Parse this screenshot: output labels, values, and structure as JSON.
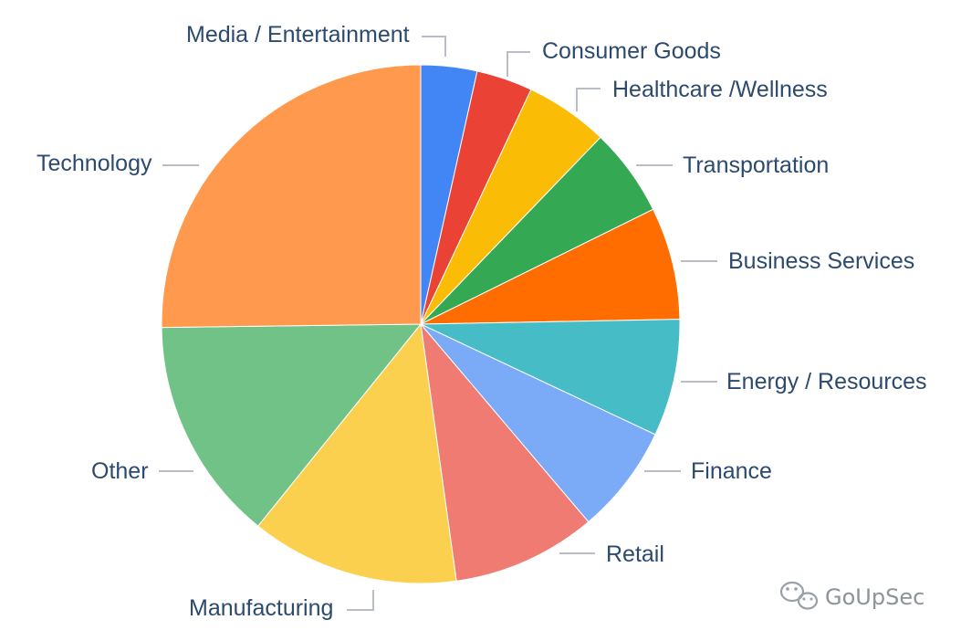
{
  "chart_data": {
    "type": "pie",
    "title": "",
    "start": "12 o'clock, clockwise",
    "slices": [
      {
        "label": "Media / Entertainment",
        "value": 3.5,
        "color": "#4285f4"
      },
      {
        "label": "Consumer Goods",
        "value": 3.5,
        "color": "#ea4335"
      },
      {
        "label": "Healthcare /Wellness",
        "value": 5.2,
        "color": "#fbbc05"
      },
      {
        "label": "Transportation",
        "value": 5.5,
        "color": "#34a853"
      },
      {
        "label": "Business Services",
        "value": 7.0,
        "color": "#ff6d01"
      },
      {
        "label": "Energy / Resources",
        "value": 7.3,
        "color": "#46bdc6"
      },
      {
        "label": "Finance",
        "value": 6.8,
        "color": "#7baaf7"
      },
      {
        "label": "Retail",
        "value": 9.0,
        "color": "#f07b72"
      },
      {
        "label": "Manufacturing",
        "value": 13.0,
        "color": "#fcd04f"
      },
      {
        "label": "Other",
        "value": 14.0,
        "color": "#71c287"
      },
      {
        "label": "Technology",
        "value": 25.2,
        "color": "#ff994d"
      }
    ]
  },
  "watermark": {
    "text": "GoUpSec",
    "icon": "wechat-icon"
  }
}
